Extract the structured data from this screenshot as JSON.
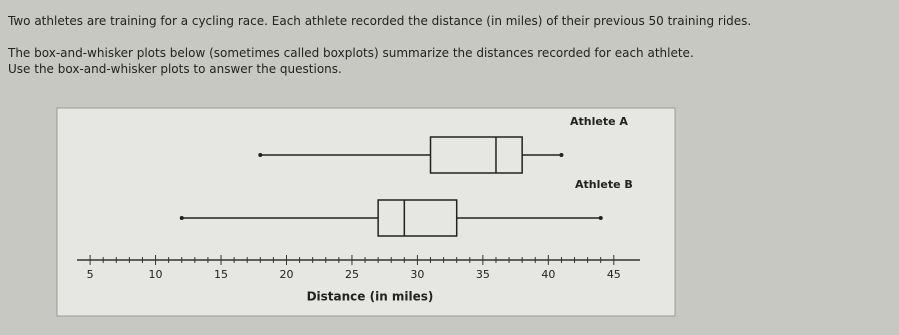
{
  "text": [
    "Two athletes are training for a cycling race. Each athlete recorded the distance (in miles) of their previous 50 training rides.",
    "The box-and-whisker plots below (sometimes called boxplots) summarize the distances recorded for each athlete.",
    "Use the box-and-whisker plots to answer the questions."
  ],
  "chart_data": {
    "type": "box",
    "xlabel": "Distance (in miles)",
    "series": [
      {
        "name": "Athlete A",
        "color": "#222222",
        "min": 18,
        "q1": 31,
        "median": 36,
        "q3": 38,
        "max": 41
      },
      {
        "name": "Athlete B",
        "color": "#222222",
        "min": 12,
        "q1": 27,
        "median": 29,
        "q3": 33,
        "max": 44
      }
    ],
    "xlim": [
      4,
      47
    ],
    "xticks": [
      5,
      10,
      15,
      20,
      25,
      30,
      35,
      40,
      45
    ]
  }
}
